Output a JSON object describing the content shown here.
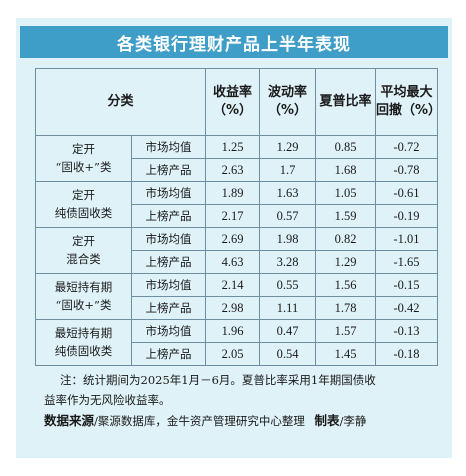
{
  "title": "各类银行理财产品上半年表现",
  "table": {
    "headers": {
      "category": "分类",
      "yield": [
        "收益率",
        "（%）"
      ],
      "volatility": [
        "波动率",
        "（%）"
      ],
      "sharpe": "夏普比率",
      "drawdown": [
        "平均最大",
        "回撤（%）"
      ]
    },
    "groups": [
      {
        "name": [
          "定开",
          "“固收+”类"
        ],
        "rows": [
          {
            "type": "市场均值",
            "yield": "1.25",
            "volatility": "1.29",
            "sharpe": "0.85",
            "drawdown": "-0.72"
          },
          {
            "type": "上榜产品",
            "yield": "2.63",
            "volatility": "1.7",
            "sharpe": "1.68",
            "drawdown": "-0.78"
          }
        ]
      },
      {
        "name": [
          "定开",
          "纯债固收类"
        ],
        "rows": [
          {
            "type": "市场均值",
            "yield": "1.89",
            "volatility": "1.63",
            "sharpe": "1.05",
            "drawdown": "-0.61"
          },
          {
            "type": "上榜产品",
            "yield": "2.17",
            "volatility": "0.57",
            "sharpe": "1.59",
            "drawdown": "-0.19"
          }
        ]
      },
      {
        "name": [
          "定开",
          "混合类"
        ],
        "rows": [
          {
            "type": "市场均值",
            "yield": "2.69",
            "volatility": "1.98",
            "sharpe": "0.82",
            "drawdown": "-1.01"
          },
          {
            "type": "上榜产品",
            "yield": "4.63",
            "volatility": "3.28",
            "sharpe": "1.29",
            "drawdown": "-1.65"
          }
        ]
      },
      {
        "name": [
          "最短持有期",
          "“固收+”类"
        ],
        "rows": [
          {
            "type": "市场均值",
            "yield": "2.14",
            "volatility": "0.55",
            "sharpe": "1.56",
            "drawdown": "-0.15"
          },
          {
            "type": "上榜产品",
            "yield": "2.98",
            "volatility": "1.11",
            "sharpe": "1.78",
            "drawdown": "-0.42"
          }
        ]
      },
      {
        "name": [
          "最短持有期",
          "纯债固收类"
        ],
        "rows": [
          {
            "type": "市场均值",
            "yield": "1.96",
            "volatility": "0.47",
            "sharpe": "1.57",
            "drawdown": "-0.13"
          },
          {
            "type": "上榜产品",
            "yield": "2.05",
            "volatility": "0.54",
            "sharpe": "1.45",
            "drawdown": "-0.18"
          }
        ]
      }
    ]
  },
  "note": {
    "line1": "注：统计期间为2025年1月－6月。夏普比率采用1年期国债收",
    "line2": "益率作为无风险收益率。"
  },
  "source": {
    "label": "数据来源",
    "text": "/聚源数据库，金牛资产管理研究中心整理",
    "maker_label": "制表",
    "maker": "/李静"
  },
  "colors": {
    "card_bg": "#dff2f8",
    "title_bg": "#3f9ec8",
    "border": "#6d8fa0"
  }
}
